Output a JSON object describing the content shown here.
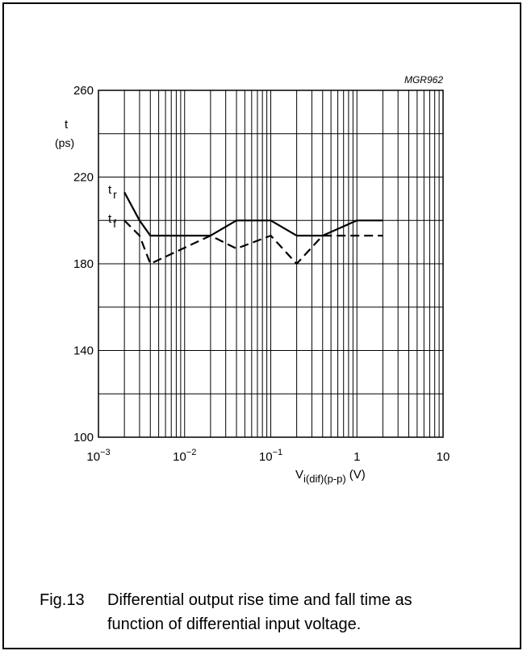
{
  "figure_code": "MGR962",
  "caption": {
    "number": "Fig.13",
    "line1": "Differential output rise time and fall time as",
    "line2": "function of differential input voltage."
  },
  "chart_data": {
    "type": "line",
    "x_scale": "log",
    "xlim": [
      0.001,
      10
    ],
    "ylim": [
      100,
      260
    ],
    "x_ticks": [
      {
        "value": 0.001,
        "mantissa": "10",
        "exp": "−3"
      },
      {
        "value": 0.01,
        "mantissa": "10",
        "exp": "−2"
      },
      {
        "value": 0.1,
        "mantissa": "10",
        "exp": "−1"
      },
      {
        "value": 1,
        "mantissa": "1",
        "exp": ""
      },
      {
        "value": 10,
        "mantissa": "10",
        "exp": ""
      }
    ],
    "y_ticks": [
      100,
      140,
      180,
      220,
      260
    ],
    "y_minor_gridlines": [
      120,
      160,
      200,
      240
    ],
    "xlabel": {
      "main": "V",
      "sub": "i(dif)(p-p)",
      "unit": "(V)"
    },
    "ylabel": {
      "main": "t",
      "unit": "(ps)"
    },
    "grid": true,
    "series": [
      {
        "label_main": "t",
        "label_sub": "r",
        "style": "solid",
        "x": [
          0.002,
          0.003,
          0.004,
          0.01,
          0.02,
          0.04,
          0.1,
          0.2,
          0.4,
          1,
          2
        ],
        "y": [
          213,
          200,
          193,
          193,
          193,
          200,
          200,
          193,
          193,
          200,
          200
        ]
      },
      {
        "label_main": "t",
        "label_sub": "f",
        "style": "dashed",
        "x": [
          0.002,
          0.003,
          0.004,
          0.02,
          0.04,
          0.1,
          0.2,
          0.4,
          1,
          2
        ],
        "y": [
          200,
          193,
          180,
          193,
          187,
          193,
          180,
          193,
          193,
          193
        ]
      }
    ]
  }
}
